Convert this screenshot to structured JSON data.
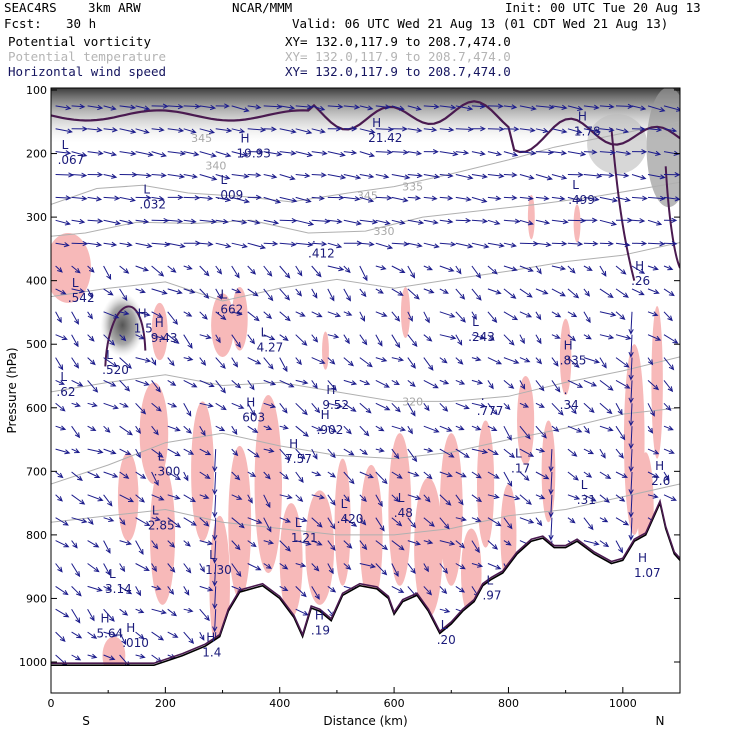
{
  "header": {
    "project": "SEAC4RS",
    "model": "3km ARW",
    "org": "NCAR/MMM",
    "init": "Init: 00 UTC Tue 20 Aug 13",
    "fcst_label": "Fcst:",
    "fcst_value": "30 h",
    "valid": "Valid: 06 UTC Wed 21 Aug 13 (01 CDT Wed 21 Aug 13)"
  },
  "fields": [
    {
      "name": "Potential vorticity",
      "xy": "XY= 132.0,117.9 to 208.7,474.0",
      "color": "#000000"
    },
    {
      "name": "Potential temperature",
      "xy": "XY= 132.0,117.9 to 208.7,474.0",
      "color": "#b4b4b4"
    },
    {
      "name": "Horizontal wind speed",
      "xy": "XY= 132.0,117.9 to 208.7,474.0",
      "color": "#15155f"
    }
  ],
  "chart_data": {
    "type": "cross-section",
    "xlabel": "Distance (km)",
    "ylabel": "Pressure (hPa)",
    "xlim": [
      0,
      1100
    ],
    "ylim": [
      1050,
      100
    ],
    "x_ticks": [
      0,
      200,
      400,
      600,
      800,
      1000
    ],
    "y_ticks": [
      100,
      200,
      300,
      400,
      500,
      600,
      700,
      800,
      900,
      1000
    ],
    "left_end_label": "S",
    "right_end_label": "N",
    "colors": {
      "pv_positive": "#f7b9b9",
      "pv_contour": "#4a1a50",
      "wind": "#1c1c8c",
      "theta": "#b0b0b0",
      "terrain": "#000000"
    },
    "theta_contours": [
      {
        "label": "335",
        "points": [
          [
            0,
            280
          ],
          [
            80,
            255
          ],
          [
            160,
            250
          ],
          [
            240,
            262
          ],
          [
            340,
            268
          ],
          [
            420,
            276
          ],
          [
            520,
            262
          ],
          [
            600,
            252
          ],
          [
            700,
            232
          ],
          [
            800,
            210
          ],
          [
            880,
            190
          ],
          [
            1000,
            168
          ],
          [
            1100,
            150
          ]
        ]
      },
      {
        "label": "330",
        "points": [
          [
            0,
            330
          ],
          [
            60,
            325
          ],
          [
            150,
            308
          ],
          [
            250,
            310
          ],
          [
            350,
            305
          ],
          [
            450,
            325
          ],
          [
            550,
            322
          ],
          [
            650,
            300
          ],
          [
            750,
            290
          ],
          [
            850,
            280
          ],
          [
            950,
            268
          ],
          [
            1100,
            245
          ]
        ]
      },
      {
        "label": "",
        "points": [
          [
            0,
            425
          ],
          [
            100,
            412
          ],
          [
            200,
            402
          ],
          [
            300,
            432
          ],
          [
            400,
            412
          ],
          [
            500,
            398
          ],
          [
            600,
            412
          ],
          [
            700,
            398
          ],
          [
            800,
            385
          ],
          [
            900,
            370
          ],
          [
            1000,
            360
          ],
          [
            1100,
            340
          ]
        ]
      },
      {
        "label": "320",
        "points": [
          [
            0,
            575
          ],
          [
            100,
            560
          ],
          [
            200,
            548
          ],
          [
            300,
            565
          ],
          [
            400,
            560
          ],
          [
            500,
            575
          ],
          [
            600,
            590
          ],
          [
            700,
            590
          ],
          [
            800,
            582
          ],
          [
            900,
            560
          ],
          [
            1000,
            542
          ],
          [
            1100,
            520
          ]
        ]
      },
      {
        "label": "",
        "points": [
          [
            0,
            720
          ],
          [
            100,
            690
          ],
          [
            200,
            655
          ],
          [
            300,
            640
          ],
          [
            400,
            660
          ],
          [
            500,
            675
          ],
          [
            600,
            680
          ],
          [
            700,
            670
          ],
          [
            800,
            650
          ],
          [
            900,
            632
          ],
          [
            1000,
            610
          ],
          [
            1100,
            600
          ]
        ]
      },
      {
        "label": "",
        "points": [
          [
            0,
            780
          ],
          [
            100,
            770
          ],
          [
            200,
            760
          ],
          [
            300,
            780
          ],
          [
            400,
            790
          ],
          [
            500,
            800
          ],
          [
            600,
            800
          ],
          [
            700,
            790
          ],
          [
            800,
            770
          ],
          [
            900,
            760
          ],
          [
            1000,
            740
          ],
          [
            1100,
            720
          ]
        ]
      }
    ],
    "theta_labels_extra": [
      {
        "text": "345",
        "x": 245,
        "y": 182
      },
      {
        "text": "340",
        "x": 270,
        "y": 225
      },
      {
        "text": "345",
        "x": 535,
        "y": 272
      }
    ],
    "highs_lows": [
      {
        "letter": "L",
        "value": ".067",
        "x": 22,
        "y": 215
      },
      {
        "letter": "H",
        "value": "19.93",
        "x": 335,
        "y": 205
      },
      {
        "letter": "L",
        "value": ".009",
        "x": 300,
        "y": 270
      },
      {
        "letter": "L",
        "value": ".032",
        "x": 165,
        "y": 285
      },
      {
        "letter": "H",
        "value": "21.42",
        "x": 565,
        "y": 180
      },
      {
        "letter": "H",
        "value": "1.78",
        "x": 925,
        "y": 170
      },
      {
        "letter": "L",
        "value": ".499",
        "x": 915,
        "y": 278
      },
      {
        "letter": ".",
        "value": ".412",
        "x": 460,
        "y": 362
      },
      {
        "letter": "L",
        "value": ".542",
        "x": 40,
        "y": 432
      },
      {
        "letter": "L",
        "value": ".662",
        "x": 300,
        "y": 450
      },
      {
        "letter": "H",
        "value": "1.5",
        "x": 155,
        "y": 480
      },
      {
        "letter": "H",
        "value": "9.43",
        "x": 185,
        "y": 495
      },
      {
        "letter": "L",
        "value": "4.27",
        "x": 370,
        "y": 510
      },
      {
        "letter": "L",
        "value": ".520",
        "x": 100,
        "y": 545
      },
      {
        "letter": "L",
        "value": ".243",
        "x": 740,
        "y": 493
      },
      {
        "letter": "H",
        "value": ".835",
        "x": 900,
        "y": 530
      },
      {
        "letter": "L",
        "value": ".62",
        "x": 20,
        "y": 580
      },
      {
        "letter": "H",
        "value": "603",
        "x": 345,
        "y": 620
      },
      {
        "letter": "H",
        "value": "9.52",
        "x": 485,
        "y": 600
      },
      {
        "letter": ".",
        "value": ".777",
        "x": 755,
        "y": 610
      },
      {
        "letter": ".",
        "value": ".34",
        "x": 900,
        "y": 600
      },
      {
        "letter": "H",
        "value": "7.57",
        "x": 420,
        "y": 685
      },
      {
        "letter": "H",
        "value": ".902",
        "x": 475,
        "y": 640
      },
      {
        "letter": "L",
        "value": ".300",
        "x": 190,
        "y": 705
      },
      {
        "letter": "L",
        "value": ".17",
        "x": 815,
        "y": 700
      },
      {
        "letter": "L",
        "value": "2.85",
        "x": 180,
        "y": 790
      },
      {
        "letter": "L",
        "value": ".420",
        "x": 510,
        "y": 780
      },
      {
        "letter": "L",
        "value": ".48",
        "x": 610,
        "y": 770
      },
      {
        "letter": "L",
        "value": "1.21",
        "x": 430,
        "y": 810
      },
      {
        "letter": "L",
        "value": ".31",
        "x": 930,
        "y": 750
      },
      {
        "letter": "H",
        "value": "2.6",
        "x": 1060,
        "y": 720
      },
      {
        "letter": "L",
        "value": "1.30",
        "x": 280,
        "y": 860
      },
      {
        "letter": "L",
        "value": "3.14",
        "x": 105,
        "y": 890
      },
      {
        "letter": "H",
        "value": "1.07",
        "x": 1030,
        "y": 865
      },
      {
        "letter": "L",
        "value": ".97",
        "x": 765,
        "y": 900
      },
      {
        "letter": "H",
        "value": "5.64",
        "x": 90,
        "y": 960
      },
      {
        "letter": "H",
        "value": ".010",
        "x": 135,
        "y": 975
      },
      {
        "letter": "H",
        "value": ".19",
        "x": 465,
        "y": 955
      },
      {
        "letter": "H",
        "value": "1.4",
        "x": 275,
        "y": 990
      },
      {
        "letter": "L",
        "value": ".20",
        "x": 685,
        "y": 970
      },
      {
        "letter": "H",
        "value": ".26",
        "x": 1025,
        "y": 405
      }
    ]
  }
}
